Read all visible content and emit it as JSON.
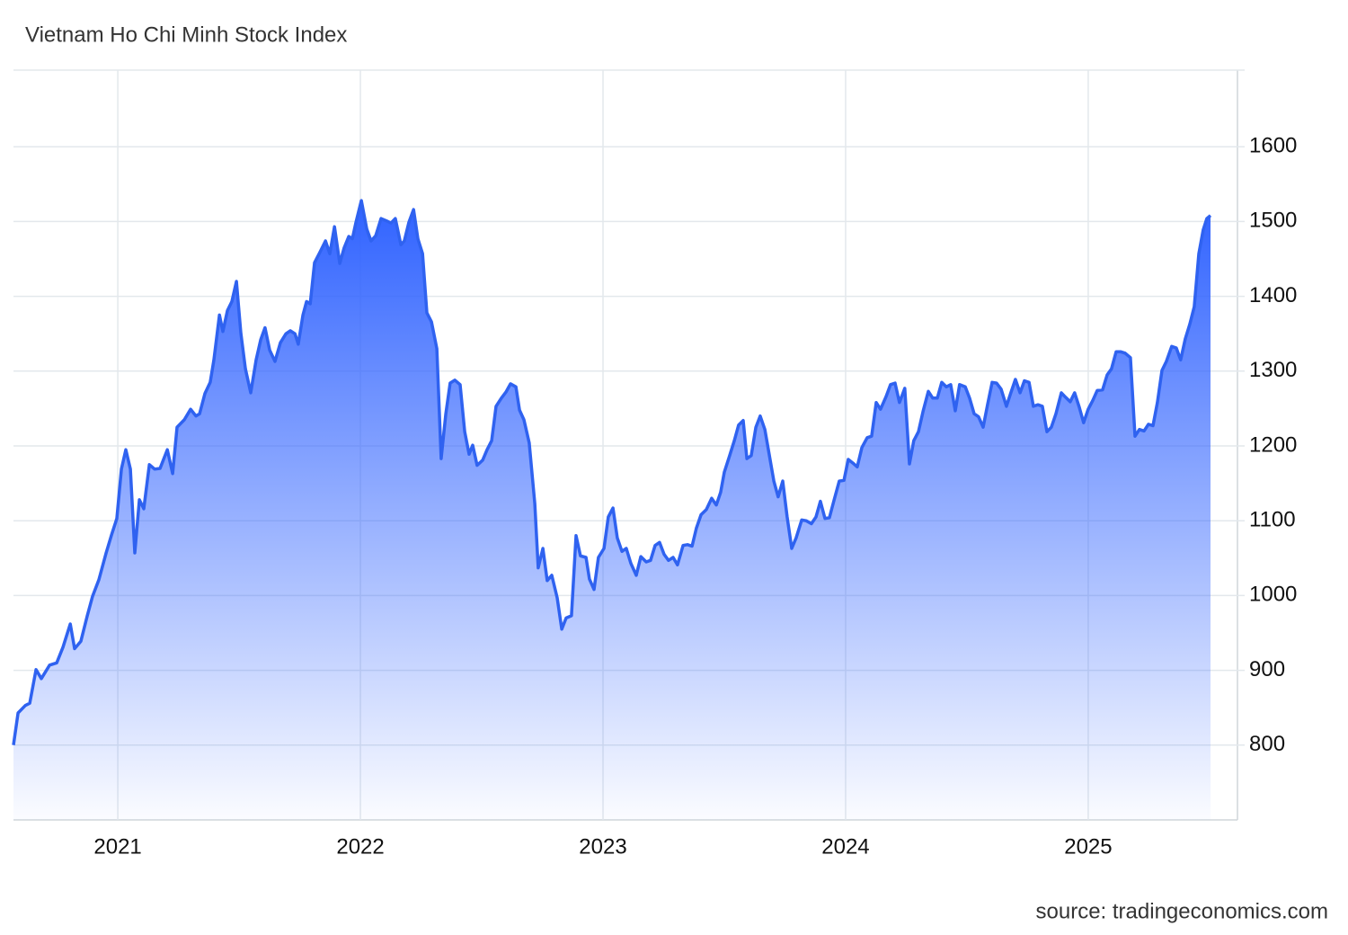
{
  "chart_data": {
    "type": "area",
    "title": "Vietnam Ho Chi Minh Stock Index",
    "source": "source: tradingeconomics.com",
    "color": "#2f62f0",
    "grid": true,
    "xlim": [
      2020.57,
      2025.63
    ],
    "xticks": [
      2021,
      2022,
      2023,
      2024,
      2025
    ],
    "ylim": [
      700,
      1700
    ],
    "yticks": [
      800,
      900,
      1000,
      1100,
      1200,
      1300,
      1400,
      1500,
      1600
    ],
    "x": [
      2020.57,
      2020.589,
      2020.619,
      2020.637,
      2020.663,
      2020.685,
      2020.719,
      2020.748,
      2020.774,
      2020.804,
      2020.822,
      2020.848,
      2020.874,
      2020.896,
      2020.922,
      2020.952,
      2020.974,
      2020.996,
      2021.015,
      2021.033,
      2021.052,
      2021.07,
      2021.089,
      2021.107,
      2021.13,
      2021.152,
      2021.174,
      2021.204,
      2021.226,
      2021.244,
      2021.274,
      2021.3,
      2021.322,
      2021.337,
      2021.359,
      2021.381,
      2021.396,
      2021.419,
      2021.433,
      2021.452,
      2021.47,
      2021.489,
      2021.507,
      2021.526,
      2021.548,
      2021.57,
      2021.589,
      2021.607,
      2021.626,
      2021.648,
      2021.67,
      2021.693,
      2021.711,
      2021.73,
      2021.744,
      2021.763,
      2021.778,
      2021.793,
      2021.811,
      2021.833,
      2021.856,
      2021.874,
      2021.893,
      2021.915,
      2021.933,
      2021.952,
      2021.967,
      2021.981,
      2022.004,
      2022.026,
      2022.044,
      2022.063,
      2022.085,
      2022.107,
      2022.126,
      2022.144,
      2022.167,
      2022.181,
      2022.2,
      2022.219,
      2022.237,
      2022.256,
      2022.274,
      2022.293,
      2022.315,
      2022.333,
      2022.352,
      2022.37,
      2022.389,
      2022.411,
      2022.43,
      2022.448,
      2022.463,
      2022.481,
      2022.504,
      2022.522,
      2022.541,
      2022.559,
      2022.581,
      2022.6,
      2022.619,
      2022.641,
      2022.656,
      2022.674,
      2022.696,
      2022.719,
      2022.733,
      2022.752,
      2022.77,
      2022.789,
      2022.811,
      2022.83,
      2022.848,
      2022.87,
      2022.889,
      2022.907,
      2022.93,
      2022.944,
      2022.963,
      2022.981,
      2023.004,
      2023.022,
      2023.041,
      2023.059,
      2023.078,
      2023.096,
      2023.115,
      2023.137,
      2023.156,
      2023.178,
      2023.196,
      2023.215,
      2023.233,
      2023.252,
      2023.27,
      2023.289,
      2023.307,
      2023.33,
      2023.348,
      2023.367,
      2023.385,
      2023.404,
      2023.426,
      2023.448,
      2023.467,
      2023.485,
      2023.5,
      2023.522,
      2023.541,
      2023.559,
      2023.578,
      2023.593,
      2023.611,
      2023.63,
      2023.648,
      2023.667,
      2023.685,
      2023.704,
      2023.722,
      2023.741,
      2023.759,
      2023.778,
      2023.796,
      2023.819,
      2023.837,
      2023.859,
      2023.878,
      2023.896,
      2023.915,
      2023.933,
      2023.952,
      2023.974,
      2023.993,
      2024.011,
      2024.03,
      2024.048,
      2024.067,
      2024.089,
      2024.107,
      2024.126,
      2024.144,
      2024.167,
      2024.185,
      2024.204,
      2024.222,
      2024.244,
      2024.263,
      2024.281,
      2024.3,
      2024.319,
      2024.341,
      2024.359,
      2024.378,
      2024.396,
      2024.415,
      2024.433,
      2024.452,
      2024.47,
      2024.493,
      2024.511,
      2024.53,
      2024.548,
      2024.567,
      2024.585,
      2024.604,
      2024.622,
      2024.641,
      2024.663,
      2024.681,
      2024.7,
      2024.719,
      2024.737,
      2024.756,
      2024.774,
      2024.793,
      2024.811,
      2024.83,
      2024.848,
      2024.867,
      2024.889,
      2024.907,
      2024.926,
      2024.944,
      2024.963,
      2024.981,
      2025.0,
      2025.019,
      2025.037,
      2025.059,
      2025.078,
      2025.096,
      2025.115,
      2025.133,
      2025.152,
      2025.174,
      2025.193,
      2025.211,
      2025.23,
      2025.248,
      2025.267,
      2025.285,
      2025.304,
      2025.322,
      2025.344,
      2025.363,
      2025.381,
      2025.4,
      2025.419,
      2025.437,
      2025.456,
      2025.474,
      2025.489,
      2025.504
    ],
    "values": [
      800,
      843,
      853,
      856,
      901,
      889,
      907,
      910,
      931,
      962,
      929,
      939,
      973,
      999,
      1021,
      1057,
      1081,
      1103,
      1169,
      1195,
      1169,
      1057,
      1128,
      1116,
      1175,
      1169,
      1170,
      1195,
      1163,
      1225,
      1235,
      1249,
      1240,
      1243,
      1270,
      1285,
      1315,
      1375,
      1353,
      1381,
      1393,
      1420,
      1351,
      1303,
      1271,
      1315,
      1342,
      1358,
      1328,
      1313,
      1338,
      1350,
      1354,
      1350,
      1336,
      1375,
      1393,
      1390,
      1445,
      1459,
      1474,
      1457,
      1493,
      1444,
      1465,
      1480,
      1477,
      1498,
      1528,
      1490,
      1474,
      1481,
      1504,
      1501,
      1498,
      1504,
      1469,
      1474,
      1499,
      1516,
      1477,
      1457,
      1378,
      1366,
      1330,
      1183,
      1243,
      1284,
      1288,
      1282,
      1219,
      1189,
      1201,
      1174,
      1181,
      1195,
      1207,
      1253,
      1264,
      1272,
      1283,
      1279,
      1248,
      1235,
      1204,
      1123,
      1037,
      1063,
      1020,
      1027,
      997,
      955,
      970,
      973,
      1080,
      1053,
      1051,
      1022,
      1008,
      1051,
      1063,
      1105,
      1117,
      1077,
      1059,
      1063,
      1043,
      1027,
      1052,
      1045,
      1047,
      1067,
      1071,
      1055,
      1047,
      1051,
      1041,
      1067,
      1068,
      1066,
      1090,
      1108,
      1115,
      1130,
      1121,
      1138,
      1165,
      1187,
      1207,
      1228,
      1234,
      1183,
      1187,
      1225,
      1240,
      1222,
      1189,
      1153,
      1132,
      1153,
      1105,
      1063,
      1077,
      1101,
      1100,
      1096,
      1105,
      1126,
      1103,
      1104,
      1127,
      1153,
      1154,
      1182,
      1177,
      1172,
      1198,
      1211,
      1213,
      1258,
      1249,
      1266,
      1282,
      1284,
      1258,
      1277,
      1176,
      1207,
      1219,
      1246,
      1273,
      1264,
      1264,
      1285,
      1279,
      1282,
      1247,
      1282,
      1279,
      1264,
      1243,
      1239,
      1225,
      1255,
      1285,
      1284,
      1276,
      1253,
      1271,
      1289,
      1271,
      1287,
      1285,
      1253,
      1255,
      1253,
      1219,
      1225,
      1243,
      1271,
      1265,
      1259,
      1271,
      1252,
      1231,
      1249,
      1261,
      1274,
      1275,
      1295,
      1303,
      1326,
      1326,
      1324,
      1318,
      1213,
      1222,
      1220,
      1229,
      1227,
      1258,
      1301,
      1313,
      1333,
      1331,
      1315,
      1343,
      1363,
      1386,
      1457,
      1489,
      1504,
      1508
    ]
  }
}
